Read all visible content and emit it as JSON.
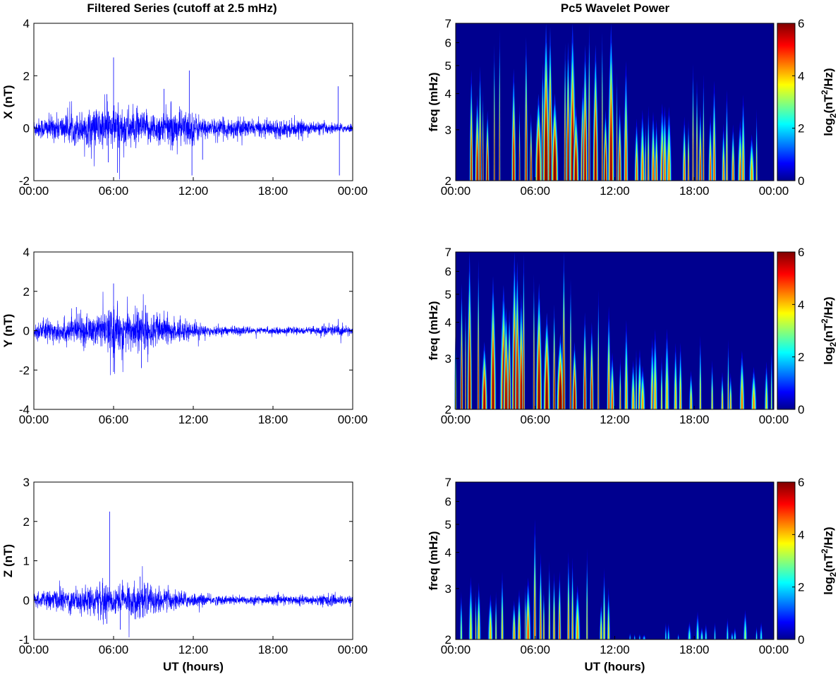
{
  "figure": {
    "left_title": "Filtered Series (cutoff at 2.5 mHz)",
    "right_title": "Pc5 Wavelet Power"
  },
  "chart_data": [
    {
      "type": "line",
      "panel": "X",
      "ylabel": "X (nT)",
      "xlabel": "",
      "ylim": [
        -2,
        4
      ],
      "yticks": [
        "-2",
        "0",
        "2",
        "4"
      ],
      "xlim": [
        0,
        24
      ],
      "xticks": [
        "00:00",
        "06:00",
        "12:00",
        "18:00",
        "00:00"
      ],
      "line_color": "#0000ff",
      "envelope": {
        "x": [
          0,
          1,
          2,
          3,
          4,
          5,
          6,
          7,
          8,
          9,
          10,
          11,
          12,
          13,
          14,
          15,
          16,
          17,
          18,
          19,
          20,
          21,
          22,
          23,
          24
        ],
        "amp": [
          0.3,
          0.4,
          0.45,
          0.5,
          0.6,
          0.7,
          0.75,
          0.7,
          0.55,
          0.55,
          0.6,
          0.65,
          0.55,
          0.3,
          0.3,
          0.35,
          0.3,
          0.25,
          0.3,
          0.3,
          0.25,
          0.2,
          0.2,
          0.15,
          0.15
        ]
      },
      "spikes": [
        {
          "x": 5.5,
          "y": 1.3
        },
        {
          "x": 5.6,
          "y": -1.3
        },
        {
          "x": 6.0,
          "y": 2.7
        },
        {
          "x": 6.3,
          "y": -1.7
        },
        {
          "x": 9.8,
          "y": 1.5
        },
        {
          "x": 11.7,
          "y": 2.2
        },
        {
          "x": 11.9,
          "y": -1.8
        },
        {
          "x": 12.7,
          "y": -1.2
        },
        {
          "x": 22.9,
          "y": 1.6
        },
        {
          "x": 23.0,
          "y": -1.8
        }
      ]
    },
    {
      "type": "heatmap",
      "panel": "X",
      "ylabel": "freq (mHz)",
      "xlabel": "",
      "ylim": [
        2,
        7
      ],
      "yscale": "log",
      "yticks": [
        "2",
        "3",
        "4",
        "5",
        "6",
        "7"
      ],
      "xlim": [
        0,
        24
      ],
      "xticks": [
        "00:00",
        "06:00",
        "12:00",
        "18:00",
        "00:00"
      ],
      "colorbar": {
        "label": "log2(nT2/Hz)",
        "range": [
          0,
          6
        ],
        "ticks": [
          "0",
          "2",
          "4",
          "6"
        ],
        "colormap": "jet"
      },
      "activity": {
        "x": [
          0,
          1,
          2,
          3,
          4,
          5,
          6,
          7,
          8,
          9,
          10,
          11,
          12,
          13,
          14,
          15,
          16,
          17,
          18,
          19,
          20,
          21,
          22,
          23,
          24
        ],
        "level": [
          0.45,
          0.65,
          0.8,
          0.85,
          0.75,
          0.75,
          0.9,
          0.95,
          0.9,
          0.85,
          0.8,
          0.9,
          0.8,
          0.55,
          0.5,
          0.55,
          0.5,
          0.45,
          0.75,
          0.6,
          0.5,
          0.55,
          0.45,
          0.45,
          0.35
        ]
      }
    },
    {
      "type": "line",
      "panel": "Y",
      "ylabel": "Y (nT)",
      "xlabel": "",
      "ylim": [
        -4,
        4
      ],
      "yticks": [
        "-4",
        "-2",
        "0",
        "2",
        "4"
      ],
      "xlim": [
        0,
        24
      ],
      "xticks": [
        "00:00",
        "06:00",
        "12:00",
        "18:00",
        "00:00"
      ],
      "line_color": "#0000ff",
      "envelope": {
        "x": [
          0,
          1,
          2,
          3,
          4,
          5,
          6,
          7,
          8,
          9,
          10,
          11,
          12,
          13,
          14,
          15,
          16,
          17,
          18,
          19,
          20,
          21,
          22,
          23,
          24
        ],
        "amp": [
          0.4,
          0.5,
          0.55,
          0.6,
          0.7,
          0.75,
          1.0,
          0.95,
          1.0,
          0.75,
          0.6,
          0.55,
          0.35,
          0.25,
          0.2,
          0.2,
          0.15,
          0.15,
          0.15,
          0.15,
          0.15,
          0.15,
          0.3,
          0.25,
          0.15
        ]
      },
      "spikes": [
        {
          "x": 6.0,
          "y": 2.4
        },
        {
          "x": 6.0,
          "y": -2.1
        },
        {
          "x": 8.1,
          "y": -1.9
        },
        {
          "x": 8.4,
          "y": 1.3
        },
        {
          "x": 3.2,
          "y": 1.2
        }
      ]
    },
    {
      "type": "heatmap",
      "panel": "Y",
      "ylabel": "freq (mHz)",
      "xlabel": "",
      "ylim": [
        2,
        7
      ],
      "yscale": "log",
      "yticks": [
        "2",
        "3",
        "4",
        "5",
        "6",
        "7"
      ],
      "xlim": [
        0,
        24
      ],
      "xticks": [
        "00:00",
        "06:00",
        "12:00",
        "18:00",
        "00:00"
      ],
      "colorbar": {
        "label": "log2(nT2/Hz)",
        "range": [
          0,
          6
        ],
        "ticks": [
          "0",
          "2",
          "4",
          "6"
        ],
        "colormap": "jet"
      },
      "activity": {
        "x": [
          0,
          1,
          2,
          3,
          4,
          5,
          6,
          7,
          8,
          9,
          10,
          11,
          12,
          13,
          14,
          15,
          16,
          17,
          18,
          19,
          20,
          21,
          22,
          23,
          24
        ],
        "level": [
          0.75,
          0.85,
          0.8,
          0.85,
          0.85,
          0.8,
          0.85,
          0.9,
          0.95,
          0.85,
          0.75,
          0.65,
          0.55,
          0.45,
          0.45,
          0.45,
          0.4,
          0.45,
          0.45,
          0.4,
          0.45,
          0.45,
          0.55,
          0.4,
          0.3
        ]
      }
    },
    {
      "type": "line",
      "panel": "Z",
      "ylabel": "Z (nT)",
      "xlabel": "UT (hours)",
      "ylim": [
        -1,
        3
      ],
      "yticks": [
        "-1",
        "0",
        "1",
        "2",
        "3"
      ],
      "xlim": [
        0,
        24
      ],
      "xticks": [
        "00:00",
        "06:00",
        "12:00",
        "18:00",
        "00:00"
      ],
      "line_color": "#0000ff",
      "envelope": {
        "x": [
          0,
          1,
          2,
          3,
          4,
          5,
          6,
          7,
          8,
          9,
          10,
          11,
          12,
          13,
          14,
          15,
          16,
          17,
          18,
          19,
          20,
          21,
          22,
          23,
          24
        ],
        "amp": [
          0.15,
          0.2,
          0.25,
          0.3,
          0.3,
          0.35,
          0.35,
          0.35,
          0.4,
          0.3,
          0.25,
          0.2,
          0.15,
          0.12,
          0.1,
          0.1,
          0.1,
          0.1,
          0.1,
          0.1,
          0.1,
          0.1,
          0.15,
          0.1,
          0.1
        ]
      },
      "spikes": [
        {
          "x": 5.7,
          "y": 2.25
        },
        {
          "x": 5.5,
          "y": -0.6
        },
        {
          "x": 6.5,
          "y": -0.75
        },
        {
          "x": 8.0,
          "y": 0.6
        }
      ]
    },
    {
      "type": "heatmap",
      "panel": "Z",
      "ylabel": "freq (mHz)",
      "xlabel": "UT (hours)",
      "ylim": [
        2,
        7
      ],
      "yscale": "log",
      "yticks": [
        "2",
        "3",
        "4",
        "5",
        "6",
        "7"
      ],
      "xlim": [
        0,
        24
      ],
      "xticks": [
        "00:00",
        "06:00",
        "12:00",
        "18:00",
        "00:00"
      ],
      "colorbar": {
        "label": "log2(nT2/Hz)",
        "range": [
          0,
          6
        ],
        "ticks": [
          "0",
          "2",
          "4",
          "6"
        ],
        "colormap": "jet"
      },
      "activity": {
        "x": [
          0,
          1,
          2,
          3,
          4,
          5,
          6,
          7,
          8,
          9,
          10,
          11,
          12,
          13,
          14,
          15,
          16,
          17,
          18,
          19,
          20,
          21,
          22,
          23,
          24
        ],
        "level": [
          0.2,
          0.3,
          0.45,
          0.35,
          0.45,
          0.5,
          0.6,
          0.45,
          0.6,
          0.45,
          0.45,
          0.4,
          0.35,
          0.05,
          0.05,
          0.05,
          0.1,
          0.05,
          0.2,
          0.1,
          0.15,
          0.1,
          0.25,
          0.1,
          0.05
        ]
      }
    }
  ]
}
